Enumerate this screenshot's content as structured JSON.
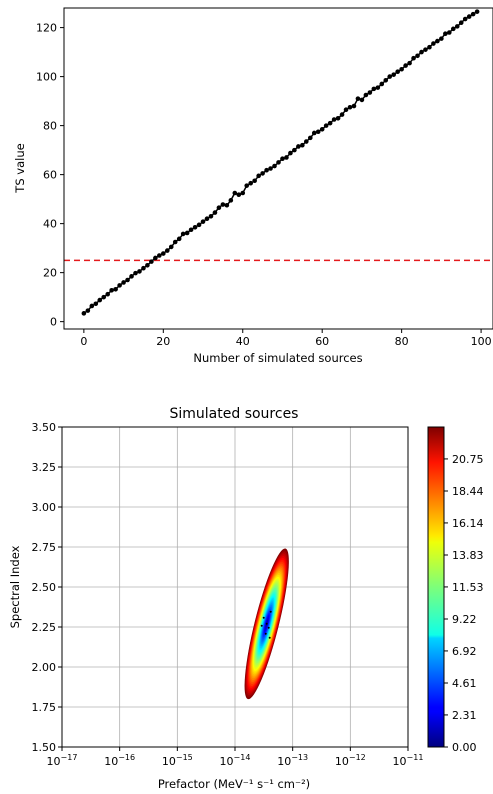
{
  "chart_data": [
    {
      "type": "scatter",
      "title": "",
      "xlabel": "Number of simulated sources",
      "ylabel": "TS value",
      "xlim": [
        -5,
        103
      ],
      "ylim": [
        -3,
        128
      ],
      "xticks": [
        0,
        20,
        40,
        60,
        80,
        100
      ],
      "yticks": [
        0,
        20,
        40,
        60,
        80,
        100,
        120
      ],
      "grid": false,
      "series": [
        {
          "color": "#000000",
          "marker": "o",
          "line": true,
          "x": [
            0,
            1,
            2,
            3,
            4,
            5,
            6,
            7,
            8,
            9,
            10,
            11,
            12,
            13,
            14,
            15,
            16,
            17,
            18,
            19,
            20,
            21,
            22,
            23,
            24,
            25,
            26,
            27,
            28,
            29,
            30,
            31,
            32,
            33,
            34,
            35,
            36,
            37,
            38,
            39,
            40,
            41,
            42,
            43,
            44,
            45,
            46,
            47,
            48,
            49,
            50,
            51,
            52,
            53,
            54,
            55,
            56,
            57,
            58,
            59,
            60,
            61,
            62,
            63,
            64,
            65,
            66,
            67,
            68,
            69,
            70,
            71,
            72,
            73,
            74,
            75,
            76,
            77,
            78,
            79,
            80,
            81,
            82,
            83,
            84,
            85,
            86,
            87,
            88,
            89,
            90,
            91,
            92,
            93,
            94,
            95,
            96,
            97,
            98,
            99
          ],
          "y": [
            3.4,
            4.5,
            6.4,
            7.3,
            8.8,
            10.0,
            11.2,
            12.8,
            13.2,
            14.8,
            16.0,
            17.0,
            18.5,
            19.8,
            20.5,
            21.8,
            23.0,
            24.5,
            26.0,
            27.0,
            27.8,
            29.0,
            30.5,
            32.5,
            33.8,
            35.8,
            36.2,
            37.5,
            38.5,
            39.5,
            40.8,
            42.0,
            43.0,
            44.5,
            46.5,
            47.8,
            47.5,
            49.5,
            52.5,
            51.8,
            52.5,
            55.5,
            56.5,
            57.5,
            59.5,
            60.5,
            61.8,
            62.5,
            63.5,
            65.0,
            66.5,
            67.0,
            68.8,
            70.0,
            71.5,
            72.0,
            73.5,
            75.0,
            77.0,
            77.5,
            78.5,
            80.0,
            81.0,
            82.5,
            83.0,
            84.5,
            86.5,
            87.5,
            88.0,
            91.0,
            90.5,
            92.5,
            93.5,
            95.0,
            95.5,
            97.0,
            98.5,
            100.0,
            100.8,
            102.0,
            103.0,
            104.5,
            105.5,
            107.5,
            108.5,
            110.0,
            111.0,
            112.0,
            113.5,
            114.5,
            115.5,
            117.5,
            118.0,
            119.5,
            120.5,
            122.0,
            123.5,
            124.5,
            125.5,
            126.5
          ]
        }
      ],
      "hline": {
        "y": 25,
        "color": "#e41a1c",
        "style": "dashed"
      }
    },
    {
      "type": "heatmap",
      "title": "Simulated sources",
      "xlabel": "Prefactor (MeV⁻¹ s⁻¹ cm⁻²)",
      "ylabel": "Spectral Index",
      "xscale": "log",
      "xlim": [
        1e-17,
        1e-11
      ],
      "ylim": [
        1.5,
        3.5
      ],
      "xtick_exponents": [
        -17,
        -16,
        -15,
        -14,
        -13,
        -12,
        -11
      ],
      "yticks": [
        "1.50",
        "1.75",
        "2.00",
        "2.25",
        "2.50",
        "2.75",
        "3.00",
        "3.25",
        "3.50"
      ],
      "grid": true,
      "colormap": "jet",
      "colorbar": {
        "range": [
          0,
          23.05
        ],
        "ticks": [
          "0.00",
          "2.31",
          "4.61",
          "6.92",
          "9.22",
          "11.53",
          "13.83",
          "16.14",
          "18.44",
          "20.75"
        ]
      },
      "region": {
        "center_log_prefactor": -13.45,
        "center_index": 2.27,
        "log_prefactor_range": [
          -14.0,
          -13.0
        ],
        "index_range": [
          1.78,
          2.75
        ],
        "peak_value": 0.0,
        "edge_value": 23.05
      }
    }
  ]
}
